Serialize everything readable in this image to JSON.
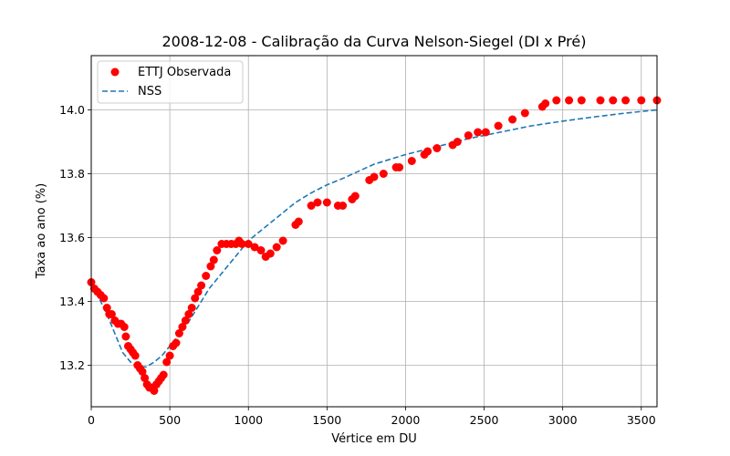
{
  "chart_data": {
    "type": "scatter",
    "title": "2008-12-08 - Calibração da Curva Nelson-Siegel (DI x Pré)",
    "xlabel": "Vértice em DU",
    "ylabel": "Taxa ao ano (%)",
    "xlim": [
      0,
      3600
    ],
    "ylim": [
      13.07,
      14.17
    ],
    "xticks": [
      0,
      500,
      1000,
      1500,
      2000,
      2500,
      3000,
      3500
    ],
    "xtick_labels": [
      "0",
      "500",
      "1000",
      "1500",
      "2000",
      "2500",
      "3000",
      "3500"
    ],
    "yticks": [
      13.2,
      13.4,
      13.6,
      13.8,
      14.0
    ],
    "ytick_labels": [
      "13.2",
      "13.4",
      "13.6",
      "13.8",
      "14.0"
    ],
    "grid": true,
    "legend_position": "top-left",
    "series": [
      {
        "name": "ETTJ Observada",
        "kind": "scatter",
        "color": "#ff0000",
        "x": [
          0,
          20,
          40,
          60,
          80,
          100,
          115,
          130,
          150,
          170,
          190,
          210,
          220,
          235,
          250,
          265,
          280,
          295,
          310,
          325,
          340,
          355,
          370,
          385,
          400,
          415,
          430,
          445,
          460,
          480,
          500,
          520,
          540,
          560,
          580,
          600,
          620,
          640,
          660,
          680,
          700,
          730,
          760,
          780,
          800,
          830,
          860,
          890,
          920,
          940,
          960,
          1000,
          1040,
          1080,
          1110,
          1140,
          1180,
          1220,
          1300,
          1320,
          1400,
          1440,
          1500,
          1570,
          1600,
          1660,
          1680,
          1770,
          1800,
          1860,
          1940,
          1960,
          2040,
          2120,
          2140,
          2200,
          2300,
          2330,
          2400,
          2460,
          2510,
          2590,
          2680,
          2760,
          2870,
          2890,
          2960,
          3040,
          3120,
          3240,
          3320,
          3400,
          3500,
          3600
        ],
        "y": [
          13.46,
          13.44,
          13.43,
          13.42,
          13.41,
          13.38,
          13.36,
          13.36,
          13.34,
          13.33,
          13.33,
          13.32,
          13.29,
          13.26,
          13.25,
          13.24,
          13.23,
          13.2,
          13.19,
          13.18,
          13.16,
          13.14,
          13.13,
          13.13,
          13.12,
          13.14,
          13.15,
          13.16,
          13.17,
          13.21,
          13.23,
          13.26,
          13.27,
          13.3,
          13.32,
          13.34,
          13.36,
          13.38,
          13.41,
          13.43,
          13.45,
          13.48,
          13.51,
          13.53,
          13.56,
          13.58,
          13.58,
          13.58,
          13.58,
          13.59,
          13.58,
          13.58,
          13.57,
          13.56,
          13.54,
          13.55,
          13.57,
          13.59,
          13.64,
          13.65,
          13.7,
          13.71,
          13.71,
          13.7,
          13.7,
          13.72,
          13.73,
          13.78,
          13.79,
          13.8,
          13.82,
          13.82,
          13.84,
          13.86,
          13.87,
          13.88,
          13.89,
          13.9,
          13.92,
          13.93,
          13.93,
          13.95,
          13.97,
          13.99,
          14.01,
          14.02,
          14.03,
          14.03,
          14.03,
          14.03,
          14.03,
          14.03,
          14.03,
          14.03
        ]
      },
      {
        "name": "NSS",
        "kind": "line",
        "style": "dashed",
        "color": "#1f77b4",
        "x": [
          0,
          50,
          100,
          150,
          200,
          250,
          300,
          350,
          400,
          450,
          500,
          550,
          600,
          650,
          700,
          750,
          800,
          850,
          900,
          950,
          1000,
          1100,
          1200,
          1300,
          1400,
          1500,
          1600,
          1800,
          2000,
          2200,
          2400,
          2600,
          2800,
          3000,
          3200,
          3400,
          3600
        ],
        "y": [
          13.45,
          13.41,
          13.36,
          13.3,
          13.24,
          13.21,
          13.195,
          13.195,
          13.21,
          13.23,
          13.26,
          13.29,
          13.32,
          13.36,
          13.4,
          13.44,
          13.47,
          13.5,
          13.53,
          13.56,
          13.59,
          13.63,
          13.67,
          13.71,
          13.74,
          13.765,
          13.785,
          13.83,
          13.86,
          13.885,
          13.91,
          13.93,
          13.95,
          13.965,
          13.978,
          13.99,
          14.0
        ]
      }
    ]
  }
}
